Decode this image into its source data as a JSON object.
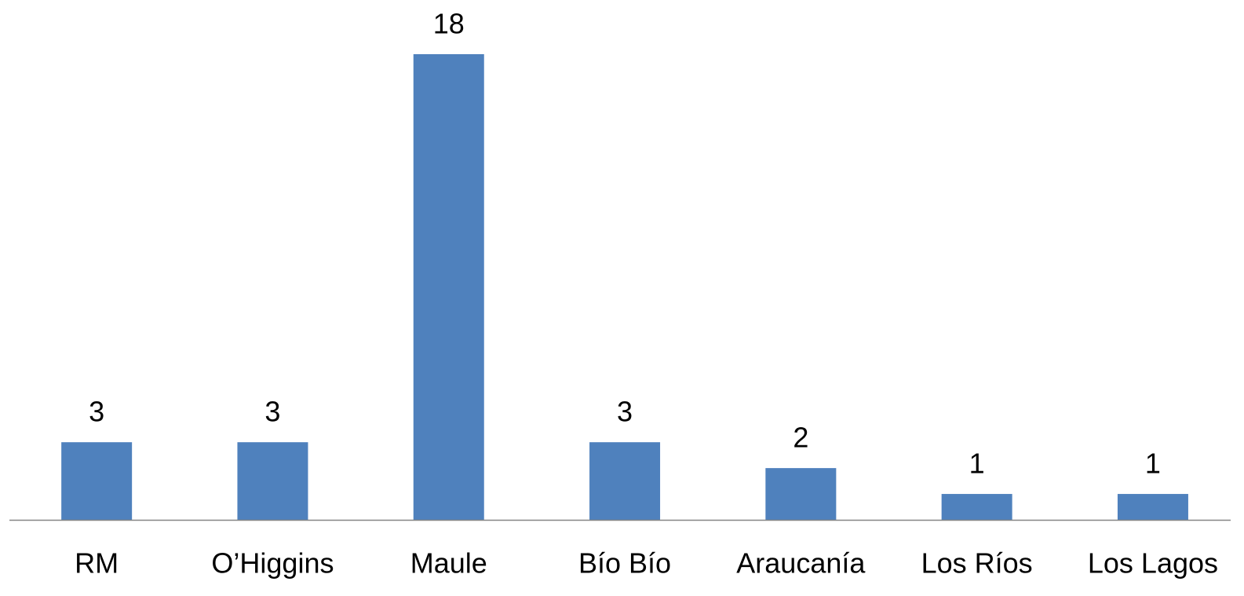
{
  "chart_data": {
    "type": "bar",
    "categories": [
      "RM",
      "O’Higgins",
      "Maule",
      "Bío Bío",
      "Araucanía",
      "Los Ríos",
      "Los Lagos"
    ],
    "values": [
      3,
      3,
      18,
      3,
      2,
      1,
      1
    ],
    "color": "#4f81bd"
  }
}
